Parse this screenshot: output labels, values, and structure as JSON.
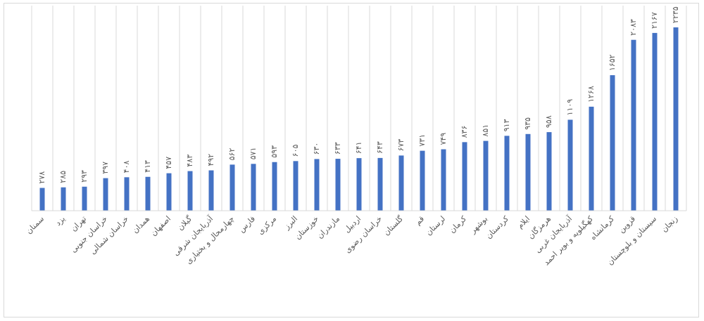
{
  "chart_data": {
    "type": "bar",
    "categories": [
      "سمنان",
      "یزد",
      "تهران",
      "خراسان جنوبی",
      "خراسان شمالی",
      "همدان",
      "اصفهان",
      "گیلان",
      "آذربایجان شرقی",
      "چهارمحال و بختیاری",
      "فارس",
      "مرکزی",
      "البرز",
      "خوزستان",
      "مازندران",
      "اردبیل",
      "خراسان رضوی",
      "گلستان",
      "قم",
      "لرستان",
      "کرمان",
      "بوشهر",
      "کردستان",
      "ایلام",
      "هرمزگان",
      "آذربایجان غربی",
      "کهگیلویه و بویر احمد",
      "کرمانشاه",
      "قزوین",
      "سیستان و بلوچستان",
      "زنجان"
    ],
    "values": [
      278,
      285,
      293,
      397,
      408,
      413,
      457,
      483,
      492,
      562,
      571,
      593,
      605,
      630,
      633,
      641,
      643,
      673,
      731,
      749,
      836,
      851,
      913,
      935,
      958,
      1109,
      1268,
      1652,
      2083,
      2167,
      2235
    ],
    "value_labels": [
      "۲۷۸",
      "۲۸۵",
      "۲۹۳",
      "۳۹۷",
      "۴۰۸",
      "۴۱۳",
      "۴۵۷",
      "۴۸۳",
      "۴۹۲",
      "۵۶۲",
      "۵۷۱",
      "۵۹۳",
      "۶۰۵",
      "۶۳۰",
      "۶۳۳",
      "۶۴۱",
      "۶۴۳",
      "۶۷۳",
      "۷۳۱",
      "۷۴۹",
      "۸۳۶",
      "۸۵۱",
      "۹۱۳",
      "۹۳۵",
      "۹۵۸",
      "۱۱۰۹",
      "۱۲۶۸",
      "۱۶۵۲",
      "۲۰۸۳",
      "۲۱۶۷",
      "۲۲۳۵"
    ],
    "ylim": [
      0,
      2500
    ],
    "bar_color": "#4472c4",
    "grid": "vertical",
    "legend": "none",
    "title": "",
    "xlabel": "",
    "ylabel": ""
  }
}
